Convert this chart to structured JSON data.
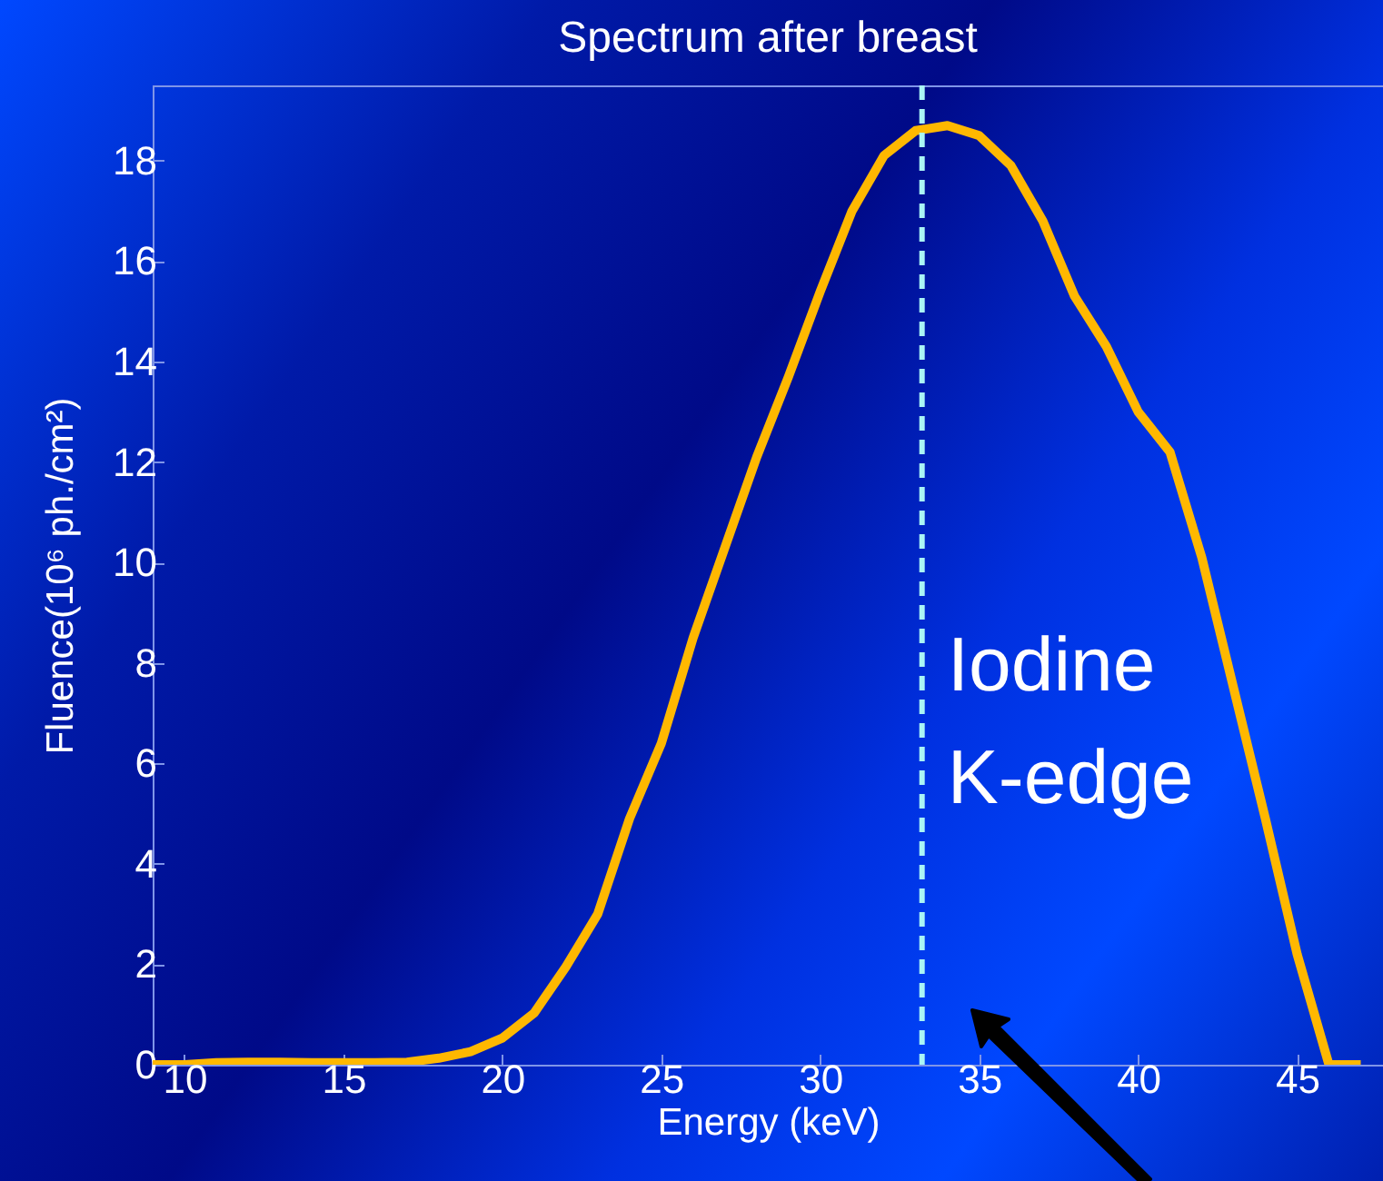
{
  "chart_data": {
    "type": "line",
    "title": "Spectrum after breast",
    "xlabel": "Energy (keV)",
    "ylabel": "Fluence(10⁶ ph./cm²)",
    "x": [
      9,
      10,
      11,
      12,
      13,
      14,
      15,
      16,
      17,
      18,
      19,
      20,
      21,
      22,
      23,
      24,
      25,
      26,
      27,
      28,
      29,
      30,
      31,
      32,
      33,
      34,
      35,
      36,
      37,
      38,
      39,
      40,
      41,
      42,
      43,
      44,
      45,
      46,
      47
    ],
    "series": [
      {
        "color": "#ffb800",
        "values": [
          0,
          0,
          0.04,
          0.05,
          0.05,
          0.04,
          0.04,
          0.04,
          0.05,
          0.13,
          0.26,
          0.53,
          1.03,
          1.95,
          3.0,
          4.9,
          6.4,
          8.5,
          10.3,
          12.1,
          13.7,
          15.4,
          17.0,
          18.1,
          18.6,
          18.7,
          18.5,
          17.9,
          16.8,
          15.3,
          14.3,
          13.0,
          12.2,
          10.1,
          7.5,
          4.9,
          2.2,
          0,
          0
        ]
      }
    ],
    "xlim": [
      9,
      47.7
    ],
    "ylim": [
      0,
      19.5
    ],
    "xticks": [
      10,
      15,
      20,
      25,
      30,
      35,
      40,
      45
    ],
    "yticks": [
      0,
      2,
      4,
      6,
      8,
      10,
      12,
      14,
      16,
      18
    ],
    "ref_lines": [
      {
        "axis": "x",
        "value": 33.2,
        "label": "Iodine K-edge",
        "color": "#aaf5f5",
        "line_style": "dashed"
      }
    ]
  }
}
